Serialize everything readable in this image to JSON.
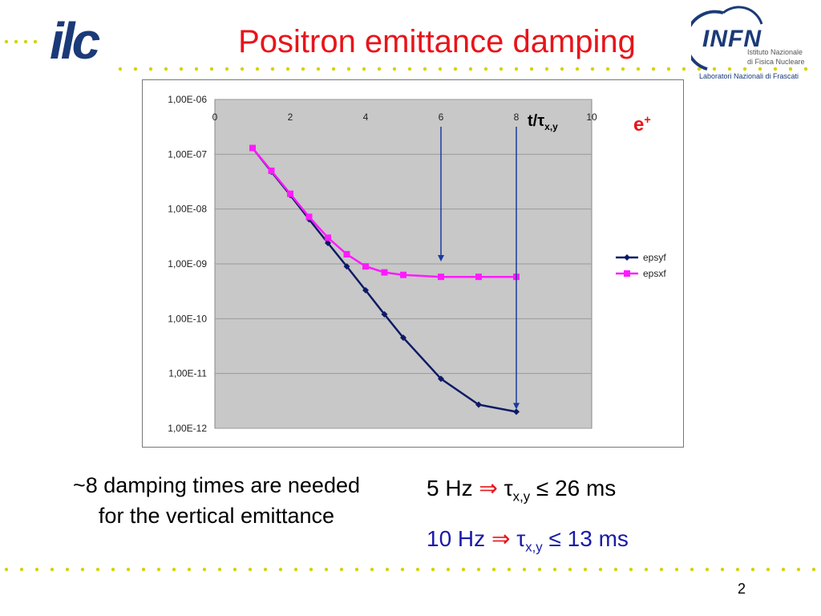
{
  "slide": {
    "title": "Positron emittance damping",
    "page_number": "2",
    "ilc_logo_text": "ilc",
    "infn_logo": {
      "name": "INFN",
      "line1": "Istituto Nazionale",
      "line2": "di Fisica Nucleare",
      "line3": "Laboratori Nazionali di Frascati"
    },
    "note": "~8 damping times are needed for the vertical emittance",
    "rate1": {
      "freq": "5 Hz",
      "arrow": "⇒",
      "tau": "τ",
      "sub": "x,y",
      "rel": "≤",
      "value": "26 ms"
    },
    "rate2": {
      "freq": "10 Hz",
      "arrow": "⇒",
      "tau": "τ",
      "sub": "x,y",
      "rel": "≤",
      "value": "13 ms"
    },
    "particle_label": "e",
    "particle_sup": "+",
    "axis_annotation": {
      "main": "t/τ",
      "sub": "x,y"
    }
  },
  "colors": {
    "title": "#e8141a",
    "epsyf": "#0d1a66",
    "epsxf": "#ff1aff",
    "plot_bg": "#c8c8c8",
    "arrow": "#1a3a9e",
    "rate2": "#1a1aa8"
  },
  "chart_data": {
    "type": "line",
    "x_ticks": [
      "0",
      "2",
      "4",
      "6",
      "8",
      "10"
    ],
    "y_ticks": [
      "1,00E-06",
      "1,00E-07",
      "1,00E-08",
      "1,00E-09",
      "1,00E-10",
      "1,00E-11",
      "1,00E-12"
    ],
    "xlim": [
      0,
      10
    ],
    "ylim": [
      1e-12,
      1e-06
    ],
    "y_scale": "log",
    "x_axis_position": "top",
    "legend_position": "right",
    "grid": "horizontal",
    "series": [
      {
        "name": "epsyf",
        "x": [
          1,
          1.5,
          2,
          2.5,
          3,
          3.5,
          4,
          4.5,
          5,
          6,
          7,
          8
        ],
        "y": [
          1.3e-07,
          4.8e-08,
          1.8e-08,
          6.5e-09,
          2.4e-09,
          9e-10,
          3.3e-10,
          1.2e-10,
          4.5e-11,
          8e-12,
          2.7e-12,
          2e-12
        ]
      },
      {
        "name": "epsxf",
        "x": [
          1,
          1.5,
          2,
          2.5,
          3,
          3.5,
          4,
          4.5,
          5,
          6,
          7,
          8
        ],
        "y": [
          1.3e-07,
          5e-08,
          1.9e-08,
          7.2e-09,
          3e-09,
          1.5e-09,
          9e-10,
          7e-10,
          6.3e-10,
          5.8e-10,
          5.8e-10,
          5.8e-10
        ]
      }
    ],
    "annotations": [
      {
        "type": "arrow",
        "x": 6,
        "from_y": 1e-06,
        "to_y": 1e-09
      },
      {
        "type": "arrow",
        "x": 8,
        "from_y": 1e-06,
        "to_y": 2e-12
      }
    ]
  }
}
